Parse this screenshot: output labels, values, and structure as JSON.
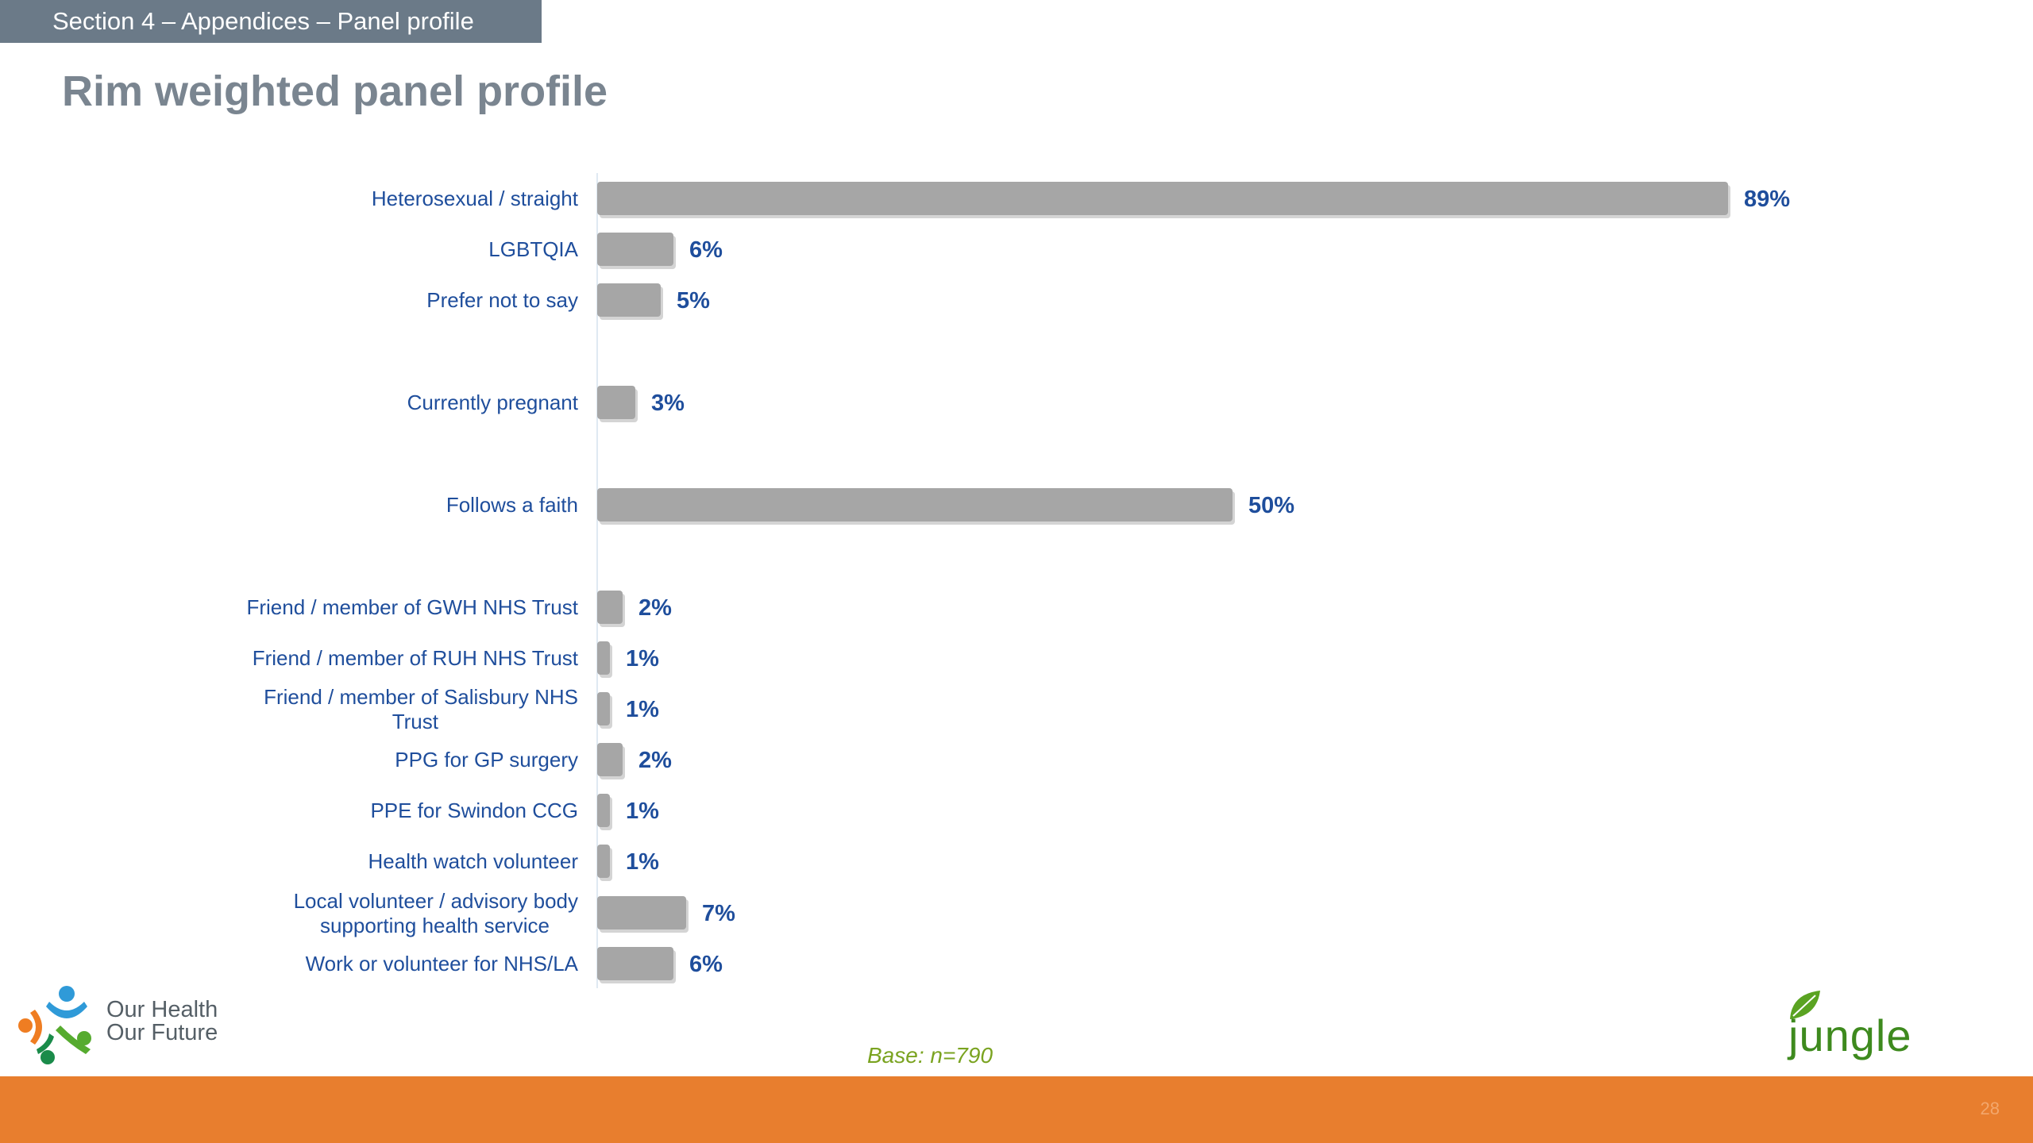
{
  "header": {
    "section": "Section 4 – Appendices – Panel profile",
    "title": "Rim weighted panel profile"
  },
  "chart_data": {
    "type": "bar",
    "orientation": "horizontal",
    "categories": [
      "Heterosexual / straight",
      "LGBTQIA",
      "Prefer not to say",
      "Currently pregnant",
      "Follows a faith",
      "Friend / member of GWH NHS Trust",
      "Friend /  member of RUH NHS Trust",
      "Friend / member of Salisbury  NHS Trust",
      "PPG for GP surgery",
      "PPE for Swindon CCG",
      "Health watch volunteer",
      "Local volunteer / advisory body supporting health service",
      "Work or volunteer for NHS/LA"
    ],
    "values": [
      89,
      6,
      5,
      3,
      50,
      2,
      1,
      1,
      2,
      1,
      1,
      7,
      6
    ],
    "value_labels": [
      "89%",
      "6%",
      "5%",
      "3%",
      "50%",
      "2%",
      "1%",
      "1%",
      "2%",
      "1%",
      "1%",
      "7%",
      "6%"
    ],
    "unit": "%",
    "xlim": [
      0,
      100
    ],
    "bar_color": "#a6a6a6",
    "label_color": "#1f4e9c",
    "grid": false,
    "legend": "none"
  },
  "footer": {
    "base": "Base: n=790",
    "logo_left": "Our Health Our Future",
    "logo_right": "jungle green",
    "page_number": "28"
  }
}
